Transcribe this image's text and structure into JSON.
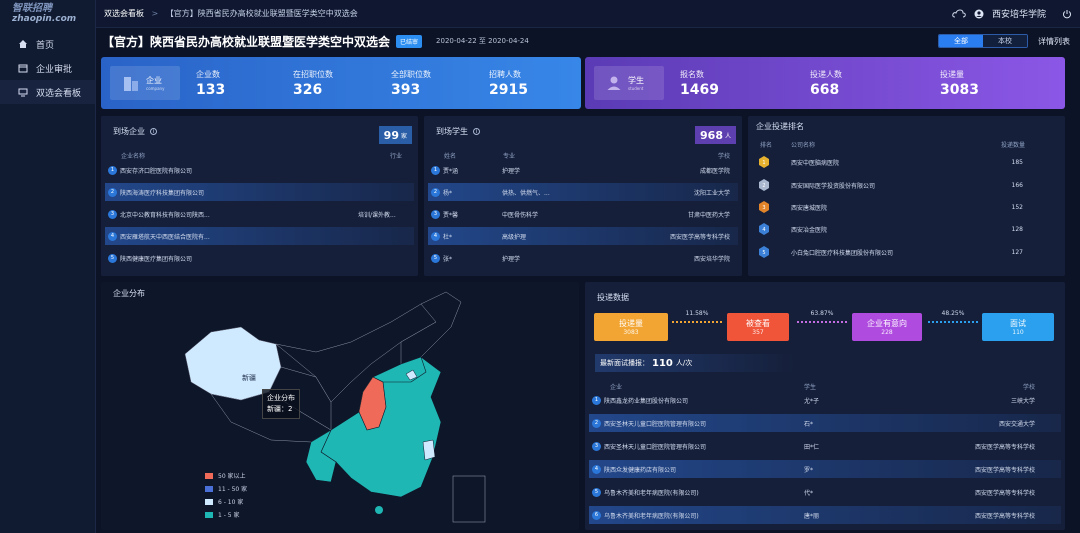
{
  "brand": {
    "line1": "智联招聘",
    "line2": "zhaopin.com"
  },
  "sidebar": {
    "items": [
      {
        "label": "首页",
        "icon": "home-icon"
      },
      {
        "label": "企业审批",
        "icon": "calendar-icon"
      },
      {
        "label": "双选会看板",
        "icon": "monitor-icon"
      }
    ]
  },
  "topbar": {
    "breadcrumb_root": "双选会看板",
    "breadcrumb_sep": ">",
    "breadcrumb_current": "【官方】陕西省民办高校就业联盟暨医学类空中双选会",
    "user": "西安培华学院"
  },
  "header": {
    "title": "【官方】陕西省民办高校就业联盟暨医学类空中双选会",
    "badge": "已结审",
    "date_range": "2020-04-22 至 2020-04-24",
    "seg_all": "全部",
    "seg_school": "本校",
    "detail_link": "详情列表"
  },
  "company_stats": {
    "label": "企业",
    "sublabel": "company",
    "items": [
      {
        "k": "企业数",
        "v": "133"
      },
      {
        "k": "在招职位数",
        "v": "326"
      },
      {
        "k": "全部职位数",
        "v": "393"
      },
      {
        "k": "招聘人数",
        "v": "2915"
      }
    ]
  },
  "student_stats": {
    "label": "学生",
    "sublabel": "student",
    "items": [
      {
        "k": "报名数",
        "v": "1469"
      },
      {
        "k": "投递人数",
        "v": "668"
      },
      {
        "k": "投递量",
        "v": "3083"
      }
    ]
  },
  "arrived_companies": {
    "title": "到场企业",
    "count": "99",
    "unit": "家",
    "col_name": "企业名称",
    "col_industry": "行业",
    "rows": [
      {
        "n": "1",
        "name": "西安存济口腔医院有限公司",
        "industry": ""
      },
      {
        "n": "2",
        "name": "陕西海涛医疗科技集团有限公司",
        "industry": ""
      },
      {
        "n": "3",
        "name": "北京中公教育科技有限公司陕西...",
        "industry": "培训/课外教..."
      },
      {
        "n": "4",
        "name": "西安雁塔航天中西医结合医院有...",
        "industry": ""
      },
      {
        "n": "5",
        "name": "陕西健康医疗集团有限公司",
        "industry": ""
      }
    ]
  },
  "arrived_students": {
    "title": "到场学生",
    "count": "968",
    "unit": "人",
    "col_name": "姓名",
    "col_major": "专业",
    "col_school": "学校",
    "rows": [
      {
        "n": "1",
        "name": "贾*涵",
        "major": "护理学",
        "school": "成都医学院"
      },
      {
        "n": "2",
        "name": "杨*",
        "major": "供热、供燃气、...",
        "school": "沈阳工业大学"
      },
      {
        "n": "3",
        "name": "贾*馨",
        "major": "中医骨伤科学",
        "school": "甘肃中医药大学"
      },
      {
        "n": "4",
        "name": "杜*",
        "major": "高级护理",
        "school": "西安医学高等专科学校"
      },
      {
        "n": "5",
        "name": "张*",
        "major": "护理学",
        "school": "西安培华学院"
      }
    ]
  },
  "delivery_rank": {
    "title": "企业投递排名",
    "col_rank": "排名",
    "col_name": "公司名称",
    "col_count": "投递数量",
    "rows": [
      {
        "name": "西安中医脑病医院",
        "count": "185",
        "color": "#e6b12f"
      },
      {
        "name": "西安国际医学投资股份有限公司",
        "count": "166",
        "color": "#a9b7cf"
      },
      {
        "name": "西安唐城医院",
        "count": "152",
        "color": "#e2852a"
      },
      {
        "name": "西安冶金医院",
        "count": "128",
        "color": "#3b7fd6"
      },
      {
        "name": "小白兔口腔医疗科技集团股份有限公司",
        "count": "127",
        "color": "#3b7fd6"
      }
    ]
  },
  "map": {
    "title": "企业分布",
    "label_xinjiang": "新疆",
    "tooltip_title": "企业分布",
    "tooltip_value": "新疆：2",
    "legend": [
      {
        "label": "50 家以上",
        "color": "#f06a5a"
      },
      {
        "label": "11 - 50 家",
        "color": "#4a6fd6"
      },
      {
        "label": "6 - 10 家",
        "color": "#cfe9ff"
      },
      {
        "label": "1 - 5 家",
        "color": "#1fb7b3"
      }
    ]
  },
  "delivery_data": {
    "title": "投递数据",
    "funnel": [
      {
        "label": "投递量",
        "value": "3083",
        "color": "#f2a532"
      },
      {
        "label": "被查看",
        "value": "357",
        "color": "#f0553a"
      },
      {
        "label": "企业有意向",
        "value": "228",
        "color": "#b04be0"
      },
      {
        "label": "面试",
        "value": "110",
        "color": "#2aa0ee"
      }
    ],
    "rates": [
      "11.58%",
      "63.87%",
      "48.25%"
    ],
    "interview_label": "最新面试播报：",
    "interview_count": "110",
    "interview_unit": "人/次",
    "col_company": "企业",
    "col_student": "学生",
    "col_school": "学校",
    "rows": [
      {
        "n": "1",
        "company": "陕西鑫龙药业集团股份有限公司",
        "student": "尤*子",
        "school": "三峡大学"
      },
      {
        "n": "2",
        "company": "西安圣林天儿童口腔医院管理有限公司",
        "student": "石*",
        "school": "西安交通大学"
      },
      {
        "n": "3",
        "company": "西安圣林天儿童口腔医院管理有限公司",
        "student": "田*仁",
        "school": "西安医学高等专科学校"
      },
      {
        "n": "4",
        "company": "陕西众发健康药店有限公司",
        "student": "罗*",
        "school": "西安医学高等专科学校"
      },
      {
        "n": "5",
        "company": "乌鲁木齐美和老年病医院(有限公司)",
        "student": "代*",
        "school": "西安医学高等专科学校"
      },
      {
        "n": "6",
        "company": "乌鲁木齐美和老年病医院(有限公司)",
        "student": "唐*丽",
        "school": "西安医学高等专科学校"
      }
    ]
  }
}
